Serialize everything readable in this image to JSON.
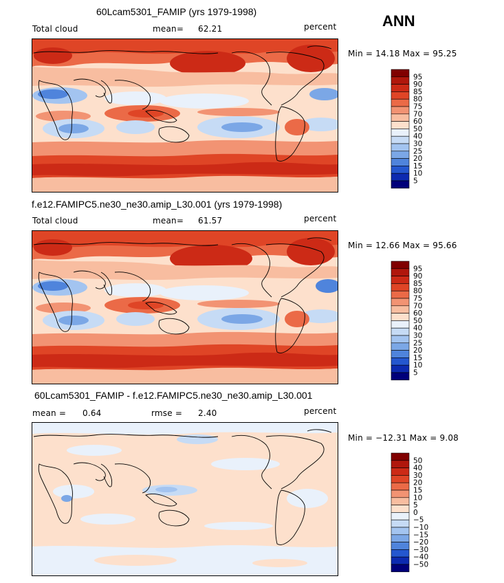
{
  "season": "ANN",
  "panels": [
    {
      "title": "60Lcam5301_FAMIP (yrs 1979-1998)",
      "left_label": "Total cloud",
      "stat_label": "mean=",
      "stat_value": "62.21",
      "units": "percent",
      "minmax": "Min =  14.18 Max =  95.25",
      "kind": "abs"
    },
    {
      "title": "f.e12.FAMIPC5.ne30_ne30.amip_L30.001 (yrs 1979-1998)",
      "left_label": "Total cloud",
      "stat_label": "mean=",
      "stat_value": "61.57",
      "units": "percent",
      "minmax": "Min =  12.66 Max =  95.66",
      "kind": "abs"
    },
    {
      "title": "60Lcam5301_FAMIP - f.e12.FAMIPC5.ne30_ne30.amip_L30.001",
      "left_label": "mean =",
      "left_value": "0.64",
      "stat_label": "rmse =",
      "stat_value": "2.40",
      "units": "percent",
      "minmax": "Min = −12.31 Max =   9.08",
      "kind": "diff"
    }
  ],
  "chart_data": [
    {
      "type": "heatmap",
      "title": "60Lcam5301_FAMIP (yrs 1979-1998)",
      "variable": "Total cloud",
      "units": "percent",
      "mean": 62.21,
      "min": 14.18,
      "max": 95.25,
      "colorbar_levels": [
        "95",
        "90",
        "85",
        "80",
        "75",
        "70",
        "60",
        "50",
        "40",
        "30",
        "25",
        "20",
        "15",
        "10",
        "5"
      ],
      "colorbar_colors": [
        "#800000",
        "#b0170c",
        "#cc2a16",
        "#df4526",
        "#eb6a47",
        "#f29373",
        "#f8bda0",
        "#fde0cc",
        "#e9f1fb",
        "#c6dbf5",
        "#a3c4f0",
        "#7ba7e6",
        "#4f84dc",
        "#2457cf",
        "#0c2ab0",
        "#00007a"
      ]
    },
    {
      "type": "heatmap",
      "title": "f.e12.FAMIPC5.ne30_ne30.amip_L30.001 (yrs 1979-1998)",
      "variable": "Total cloud",
      "units": "percent",
      "mean": 61.57,
      "min": 12.66,
      "max": 95.66,
      "colorbar_levels": [
        "95",
        "90",
        "85",
        "80",
        "75",
        "70",
        "60",
        "50",
        "40",
        "30",
        "25",
        "20",
        "15",
        "10",
        "5"
      ],
      "colorbar_colors": [
        "#800000",
        "#b0170c",
        "#cc2a16",
        "#df4526",
        "#eb6a47",
        "#f29373",
        "#f8bda0",
        "#fde0cc",
        "#e9f1fb",
        "#c6dbf5",
        "#a3c4f0",
        "#7ba7e6",
        "#4f84dc",
        "#2457cf",
        "#0c2ab0",
        "#00007a"
      ]
    },
    {
      "type": "heatmap",
      "title": "60Lcam5301_FAMIP - f.e12.FAMIPC5.ne30_ne30.amip_L30.001",
      "variable": "Total cloud difference",
      "units": "percent",
      "mean": 0.64,
      "rmse": 2.4,
      "min": -12.31,
      "max": 9.08,
      "colorbar_levels": [
        "50",
        "40",
        "30",
        "20",
        "15",
        "10",
        "5",
        "0",
        "−5",
        "−10",
        "−15",
        "−20",
        "−30",
        "−40",
        "−50"
      ],
      "colorbar_colors": [
        "#800000",
        "#b0170c",
        "#cc2a16",
        "#df4526",
        "#eb6a47",
        "#f29373",
        "#f8bda0",
        "#fde0cc",
        "#e9f1fb",
        "#c6dbf5",
        "#a3c4f0",
        "#7ba7e6",
        "#4f84dc",
        "#2457cf",
        "#0c2ab0",
        "#00007a"
      ]
    }
  ]
}
